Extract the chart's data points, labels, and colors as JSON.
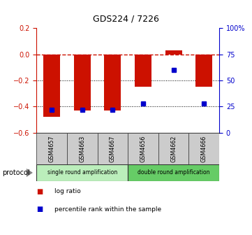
{
  "title": "GDS224 / 7226",
  "samples": [
    "GSM4657",
    "GSM4663",
    "GSM4667",
    "GSM4656",
    "GSM4662",
    "GSM4666"
  ],
  "log_ratios": [
    -0.48,
    -0.43,
    -0.43,
    -0.25,
    0.03,
    -0.25
  ],
  "percentile_ranks": [
    22,
    22,
    22,
    28,
    60,
    28
  ],
  "bar_color": "#cc1100",
  "dot_color": "#0000cc",
  "ylim_left": [
    -0.6,
    0.2
  ],
  "ylim_right": [
    0,
    100
  ],
  "yticks_left": [
    -0.6,
    -0.4,
    -0.2,
    0.0,
    0.2
  ],
  "yticks_right": [
    0,
    25,
    50,
    75,
    100
  ],
  "ytick_labels_right": [
    "0",
    "25",
    "50",
    "75",
    "100%"
  ],
  "hline_y": 0.0,
  "dotted_lines": [
    -0.2,
    -0.4
  ],
  "groups": [
    {
      "label": "single round amplification",
      "start": 0,
      "end": 3,
      "color": "#bbeebb"
    },
    {
      "label": "double round amplification",
      "start": 3,
      "end": 6,
      "color": "#66cc66"
    }
  ],
  "protocol_label": "protocol",
  "legend_items": [
    {
      "label": "log ratio",
      "color": "#cc1100"
    },
    {
      "label": "percentile rank within the sample",
      "color": "#0000cc"
    }
  ],
  "bar_width": 0.55,
  "background_color": "#ffffff",
  "left_axis_color": "#cc1100",
  "right_axis_color": "#0000cc",
  "tick_label_box_color": "#cccccc",
  "tick_label_box_edge": "#444444"
}
